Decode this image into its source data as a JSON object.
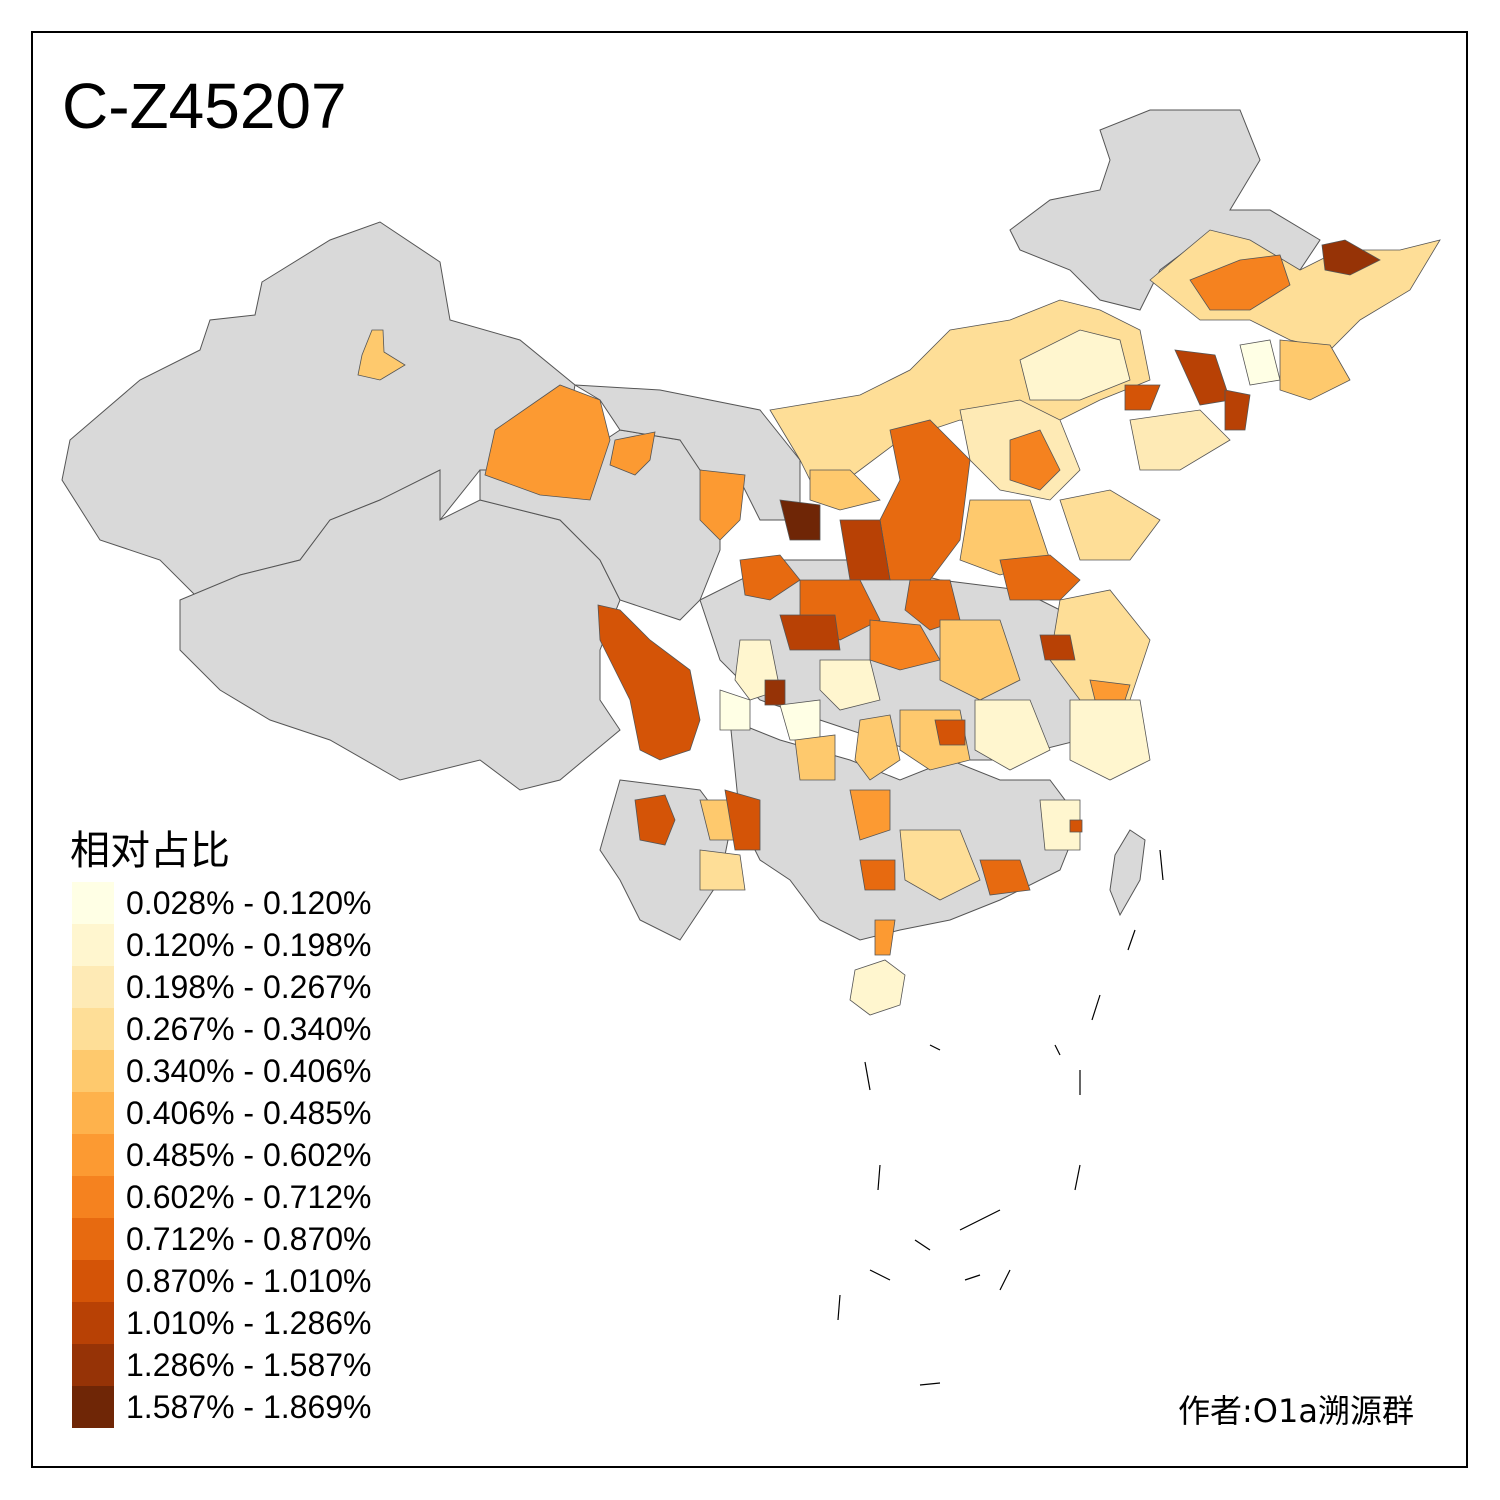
{
  "map": {
    "title": "C-Z45207",
    "legend_title": "相对占比",
    "author": "作者:O1a溯源群",
    "no_data_color": "#d9d9d9",
    "border_color": "#555555",
    "legend": [
      {
        "label": "0.028% - 0.120%",
        "color": "#ffffe5"
      },
      {
        "label": "0.120% - 0.198%",
        "color": "#fff6cf"
      },
      {
        "label": "0.198% - 0.267%",
        "color": "#feeab5"
      },
      {
        "label": "0.267% - 0.340%",
        "color": "#fede97"
      },
      {
        "label": "0.340% - 0.406%",
        "color": "#fec96d"
      },
      {
        "label": "0.406% - 0.485%",
        "color": "#feb24c"
      },
      {
        "label": "0.485% - 0.602%",
        "color": "#fc9a32"
      },
      {
        "label": "0.602% - 0.712%",
        "color": "#f5821f"
      },
      {
        "label": "0.712% - 0.870%",
        "color": "#e76a10"
      },
      {
        "label": "0.870% - 1.010%",
        "color": "#d45407"
      },
      {
        "label": "1.010% - 1.286%",
        "color": "#b84105"
      },
      {
        "label": "1.286% - 1.587%",
        "color": "#963306"
      },
      {
        "label": "1.587% - 1.869%",
        "color": "#6f2606"
      }
    ]
  }
}
